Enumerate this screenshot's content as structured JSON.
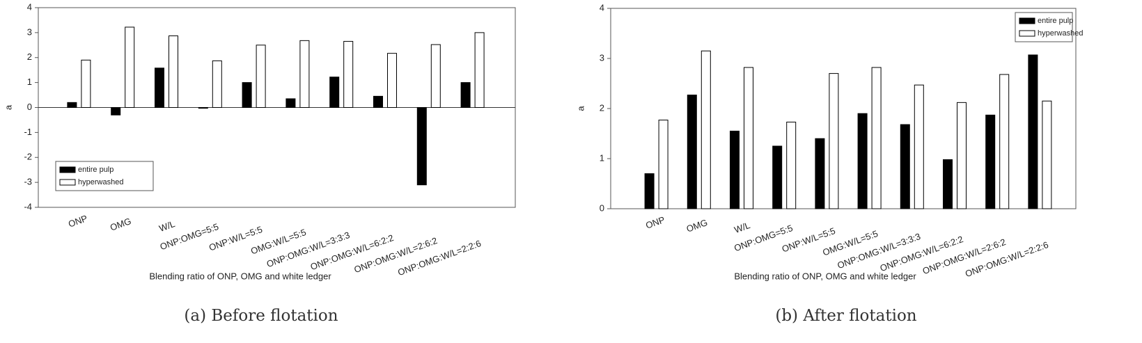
{
  "chart_data": [
    {
      "type": "bar",
      "caption": "(a) Before flotation",
      "xlabel": "Blending ratio of ONP, OMG and white ledger",
      "ylabel": "a",
      "categories": [
        "ONP",
        "OMG",
        "W/L",
        "ONP:OMG=5:5",
        "ONP:W/L=5:5",
        "OMG:W/L=5:5",
        "ONP:OMG:W/L=3:3:3",
        "ONP:OMG:W/L=6:2:2",
        "ONP:OMG:W/L=2:6:2",
        "ONP:OMG:W/L=2:2:6"
      ],
      "series": [
        {
          "name": "entire pulp",
          "color": "#000000",
          "values": [
            0.2,
            -0.3,
            1.58,
            -0.03,
            1.0,
            0.35,
            1.22,
            0.45,
            -3.1,
            1.0
          ]
        },
        {
          "name": "hyperwashed",
          "color": "#ffffff",
          "values": [
            1.9,
            3.22,
            2.87,
            1.87,
            2.5,
            2.68,
            2.65,
            2.17,
            2.52,
            3.0
          ]
        }
      ],
      "ylim": [
        -4,
        4
      ],
      "yticks": [
        -4,
        -3,
        -2,
        -1,
        0,
        1,
        2,
        3,
        4
      ],
      "legend": "lower left"
    },
    {
      "type": "bar",
      "caption": "(b) After flotation",
      "xlabel": "Blending ratio of ONP, OMG and white ledger",
      "ylabel": "a",
      "categories": [
        "ONP",
        "OMG",
        "W/L",
        "ONP:OMG=5:5",
        "ONP:W/L=5:5",
        "OMG:W/L=5:5",
        "ONP:OMG:W/L=3:3:3",
        "ONP:OMG:W/L=6:2:2",
        "ONP:OMG:W/L=2:6:2",
        "ONP:OMG:W/L=2:2:6"
      ],
      "series": [
        {
          "name": "entire pulp",
          "color": "#000000",
          "values": [
            0.7,
            2.27,
            1.55,
            1.25,
            1.4,
            1.9,
            1.68,
            0.98,
            1.87,
            3.07
          ]
        },
        {
          "name": "hyperwashed",
          "color": "#ffffff",
          "values": [
            1.77,
            3.15,
            2.82,
            1.73,
            2.7,
            2.82,
            2.47,
            2.12,
            2.68,
            2.15
          ]
        }
      ],
      "ylim": [
        0,
        4
      ],
      "yticks": [
        0,
        1,
        2,
        3,
        4
      ],
      "legend": "upper right"
    }
  ]
}
